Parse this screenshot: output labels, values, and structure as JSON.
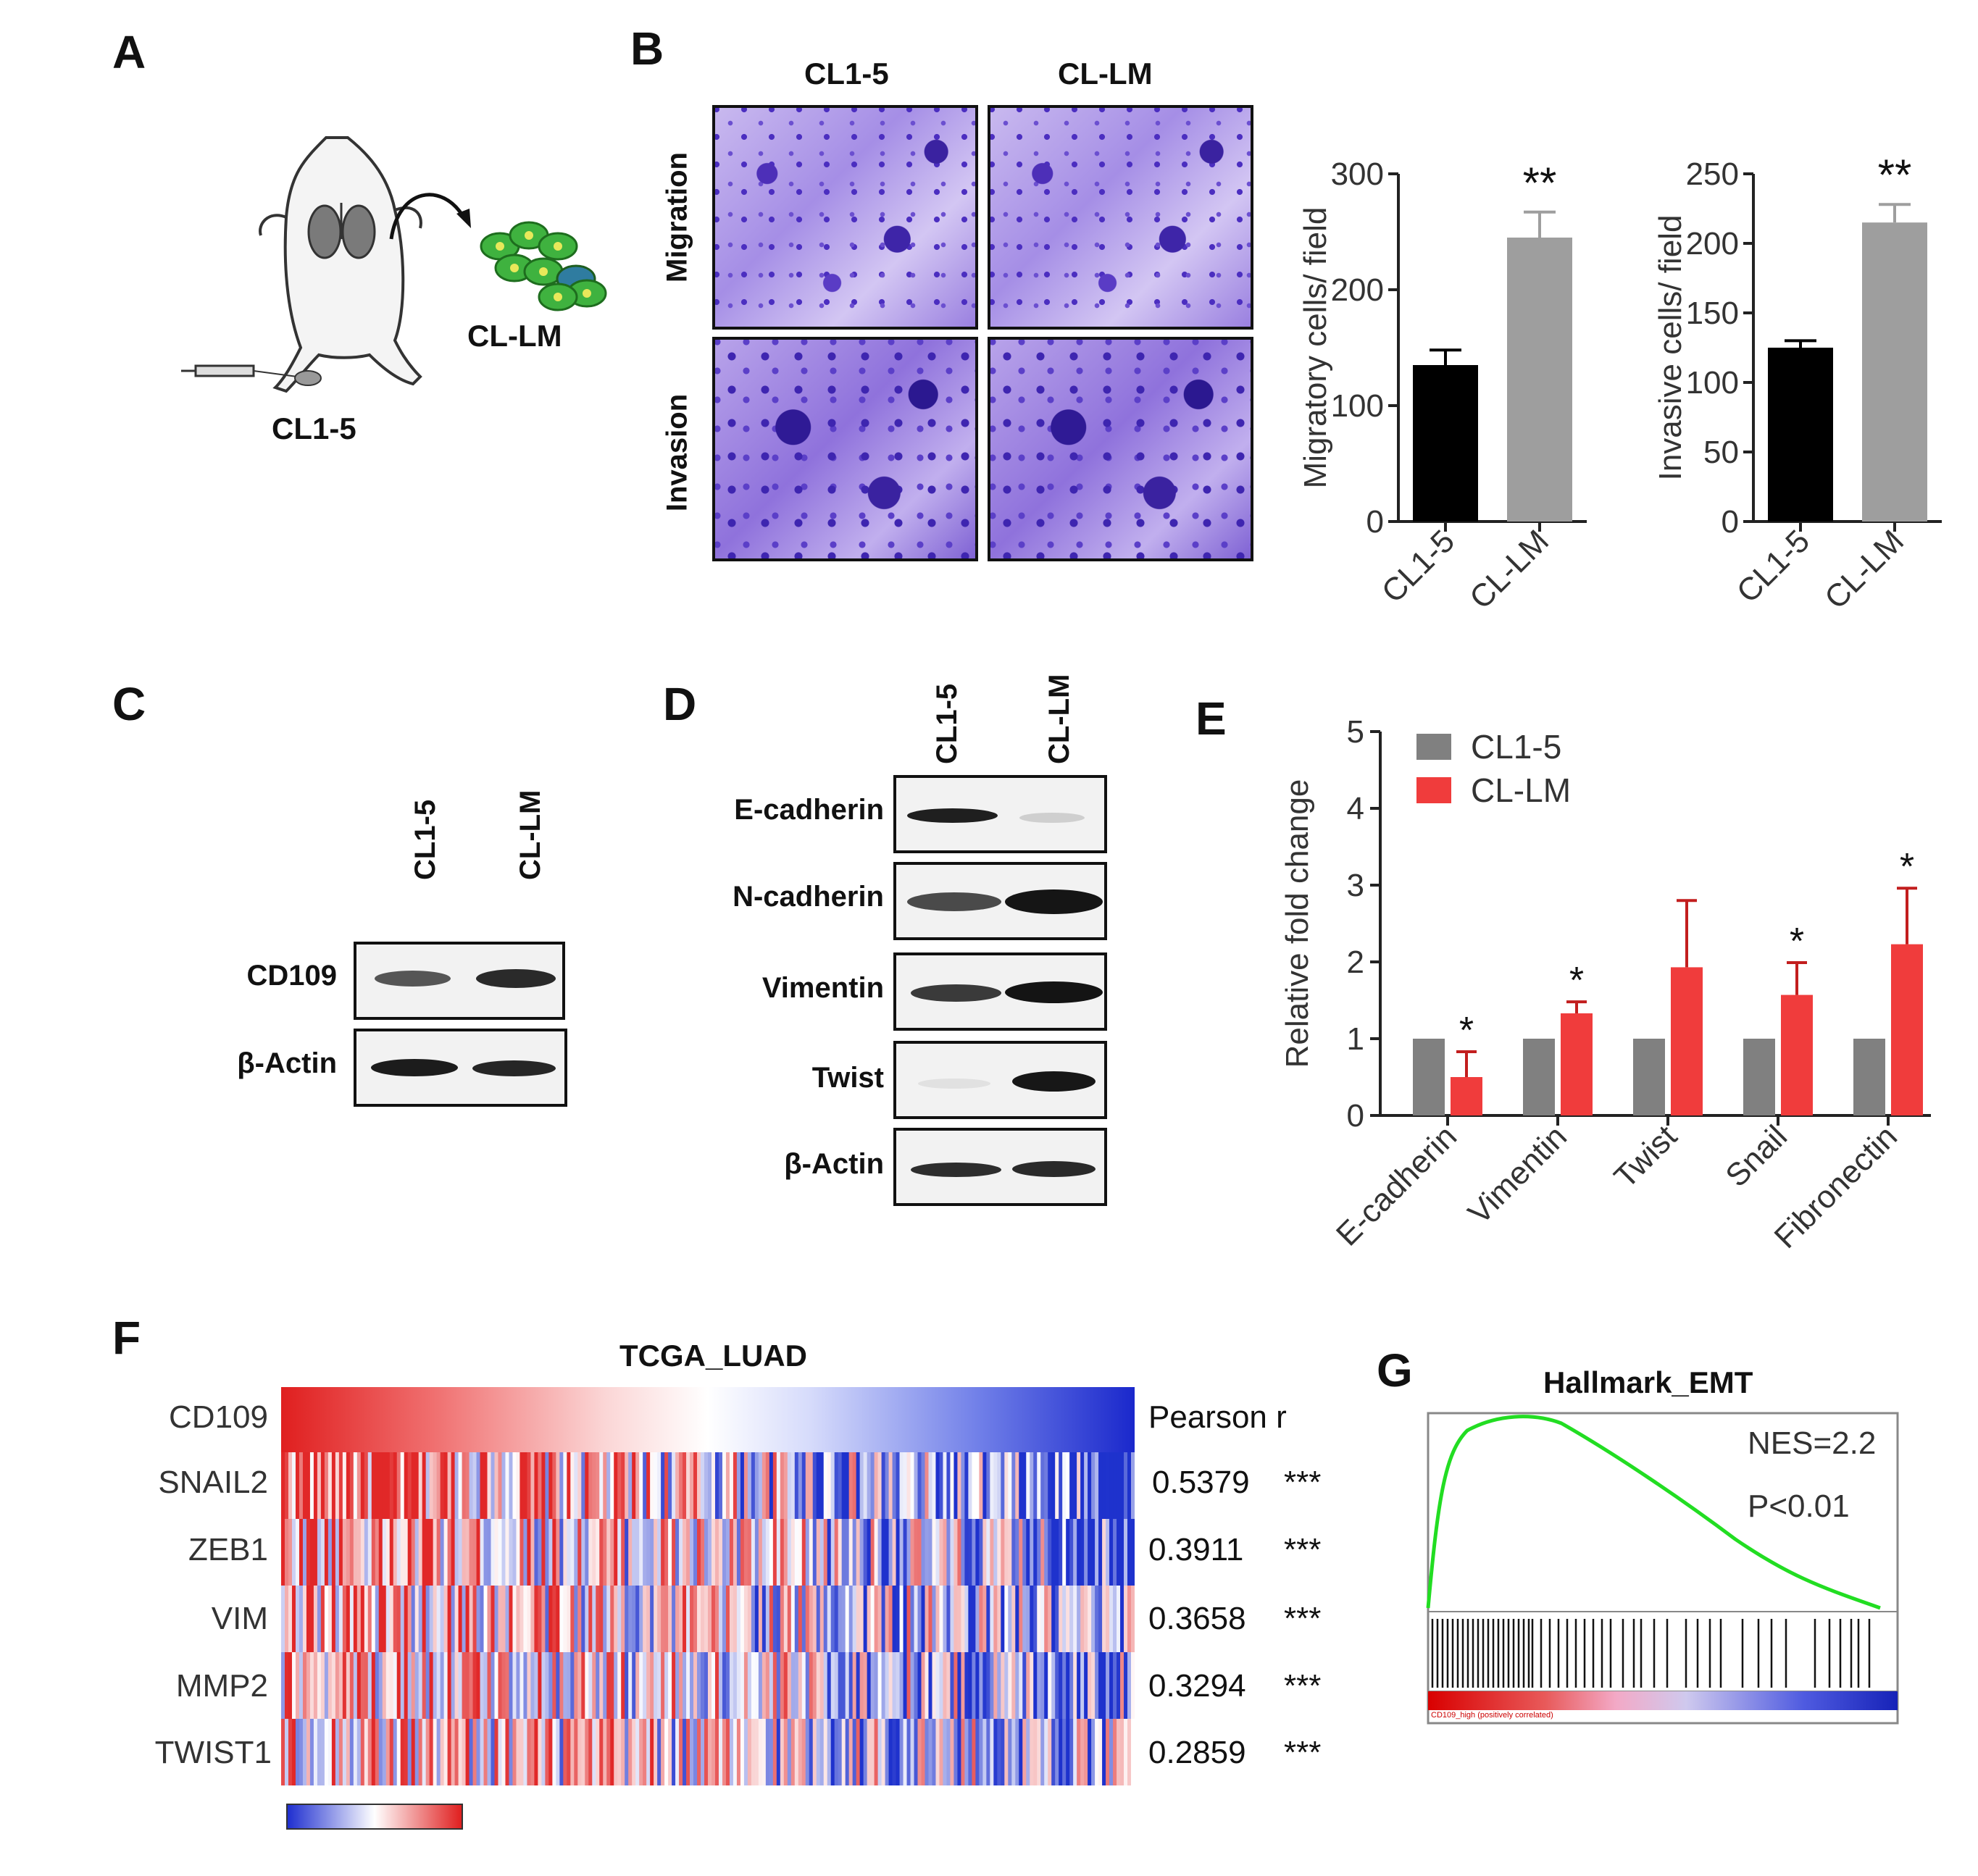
{
  "panels": {
    "A": "A",
    "B": "B",
    "C": "C",
    "D": "D",
    "E": "E",
    "F": "F",
    "G": "G"
  },
  "panelA": {
    "source_label": "CL1-5",
    "derived_label": "CL-LM"
  },
  "panelB": {
    "col_labels": [
      "CL1-5",
      "CL-LM"
    ],
    "row_labels": [
      "Migration",
      "Invasion"
    ]
  },
  "panelC": {
    "lanes": [
      "CL1-5",
      "CL-LM"
    ],
    "rows": [
      "CD109",
      "β-Actin"
    ]
  },
  "panelD": {
    "lanes": [
      "CL1-5",
      "CL-LM"
    ],
    "rows": [
      "E-cadherin",
      "N-cadherin",
      "Vimentin",
      "Twist",
      "β-Actin"
    ]
  },
  "panelF": {
    "title": "TCGA_LUAD",
    "genes": [
      "CD109",
      "SNAIL2",
      "ZEB1",
      "VIM",
      "MMP2",
      "TWIST1"
    ],
    "pearson_header": "Pearson r",
    "pearson": [
      "0.5379",
      "0.3911",
      "0.3658",
      "0.3294",
      "0.2859"
    ],
    "sig": "***",
    "colorbar_colors": [
      "#1f2fd0",
      "#ffffff",
      "#e01f1f"
    ]
  },
  "panelG": {
    "title": "Hallmark_EMT",
    "nes": "NES=2.2",
    "p": "P<0.01",
    "phenotype_label": "CD109_high (positively correlated)",
    "curve_color": "#22dd22"
  },
  "chart_data": [
    {
      "type": "bar",
      "panel": "B-left",
      "categories": [
        "CL1-5",
        "CL-LM"
      ],
      "values": [
        135,
        245
      ],
      "errors": [
        13,
        22
      ],
      "ylabel": "Migratory cells/ field",
      "ylim": [
        0,
        300
      ],
      "yticks": [
        0,
        100,
        200,
        300
      ],
      "annotation": "**",
      "colors": [
        "#000000",
        "#9e9e9e"
      ]
    },
    {
      "type": "bar",
      "panel": "B-right",
      "categories": [
        "CL1-5",
        "CL-LM"
      ],
      "values": [
        125,
        215
      ],
      "errors": [
        5,
        13
      ],
      "ylabel": "Invasive cells/ field",
      "ylim": [
        0,
        250
      ],
      "yticks": [
        0,
        50,
        100,
        150,
        200,
        250
      ],
      "annotation": "**",
      "colors": [
        "#000000",
        "#9e9e9e"
      ]
    },
    {
      "type": "bar",
      "panel": "E",
      "categories": [
        "E-cadherin",
        "Vimentin",
        "Twist",
        "Snail",
        "Fibronectin"
      ],
      "series": [
        {
          "name": "CL1-5",
          "values": [
            1,
            1,
            1,
            1,
            1
          ],
          "color": "#808080"
        },
        {
          "name": "CL-LM",
          "values": [
            0.5,
            1.33,
            1.93,
            1.57,
            2.23
          ],
          "errors": [
            0.33,
            0.15,
            0.87,
            0.42,
            0.73
          ],
          "color": "#f03c3c"
        }
      ],
      "significance": [
        "*",
        "*",
        "",
        "*",
        "*"
      ],
      "ylabel": "Relative fold change",
      "ylim": [
        0,
        5
      ],
      "yticks": [
        0,
        1,
        2,
        3,
        4,
        5
      ],
      "legend": "top-left"
    }
  ]
}
